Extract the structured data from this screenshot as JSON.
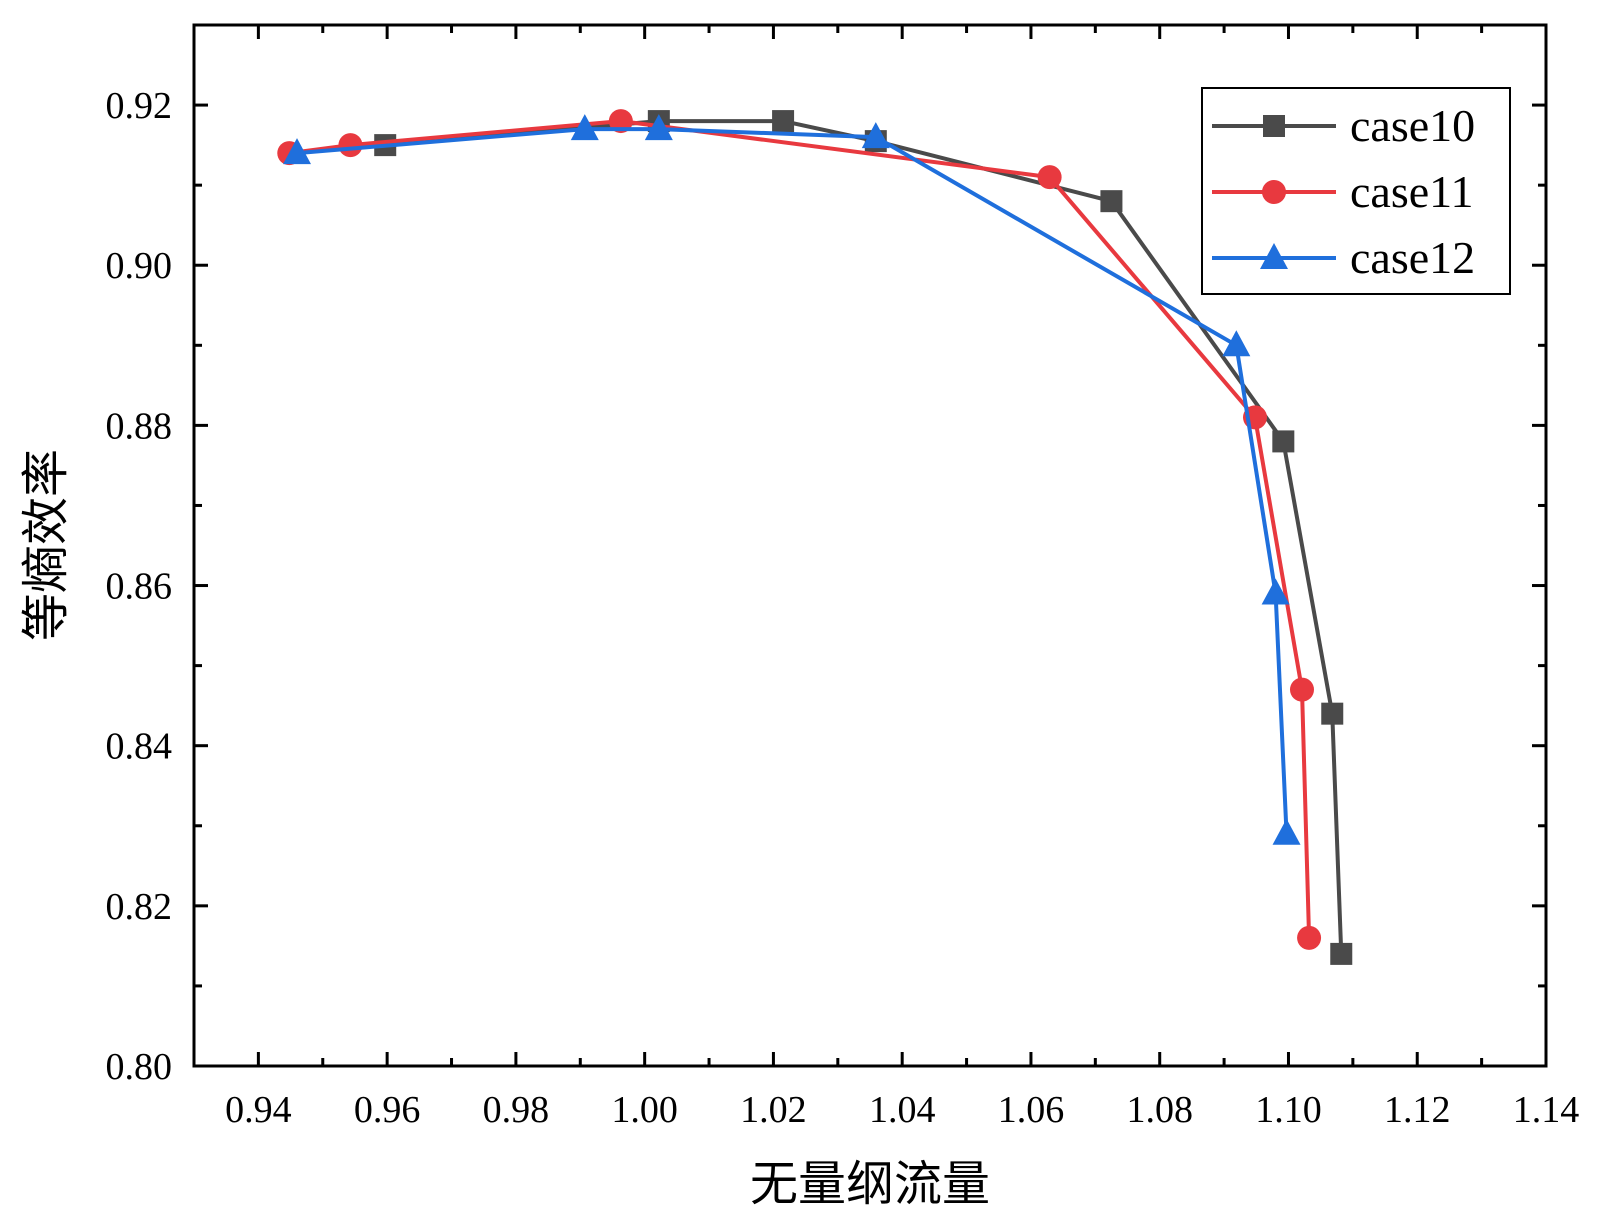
{
  "chart_data": {
    "type": "line",
    "title": "",
    "xlabel": "无量纲流量",
    "ylabel": "等熵效率",
    "xlim": [
      0.93,
      1.14
    ],
    "ylim": [
      0.8,
      0.93
    ],
    "xticks": [
      0.94,
      0.96,
      0.98,
      1.0,
      1.02,
      1.04,
      1.06,
      1.08,
      1.1,
      1.12,
      1.14
    ],
    "xtick_labels": [
      "0.94",
      "0.96",
      "0.98",
      "1.00",
      "1.02",
      "1.04",
      "1.06",
      "1.08",
      "1.10",
      "1.12",
      "1.14"
    ],
    "yticks": [
      0.8,
      0.82,
      0.84,
      0.86,
      0.88,
      0.9,
      0.92
    ],
    "ytick_labels": [
      "0.80",
      "0.82",
      "0.84",
      "0.86",
      "0.88",
      "0.90",
      "0.92"
    ],
    "grid": false,
    "legend_position": "top-right",
    "series": [
      {
        "name": "case10",
        "color": "#4a4a4a",
        "marker": "square",
        "x": [
          0.9597,
          1.0022,
          1.0215,
          1.0359,
          1.0725,
          1.0992,
          1.1068,
          1.1082
        ],
        "y": [
          0.915,
          0.918,
          0.918,
          0.9155,
          0.908,
          0.878,
          0.844,
          0.814
        ]
      },
      {
        "name": "case11",
        "color": "#e8393f",
        "marker": "circle",
        "x": [
          0.9448,
          0.9543,
          0.9963,
          1.0629,
          1.0948,
          1.1021,
          1.1032
        ],
        "y": [
          0.914,
          0.915,
          0.918,
          0.911,
          0.881,
          0.847,
          0.816
        ]
      },
      {
        "name": "case12",
        "color": "#1f6fdc",
        "marker": "triangle",
        "x": [
          0.946,
          0.9907,
          1.0022,
          1.0359,
          1.0919,
          1.098,
          1.0997
        ],
        "y": [
          0.914,
          0.917,
          0.917,
          0.916,
          0.89,
          0.859,
          0.829
        ]
      }
    ]
  }
}
